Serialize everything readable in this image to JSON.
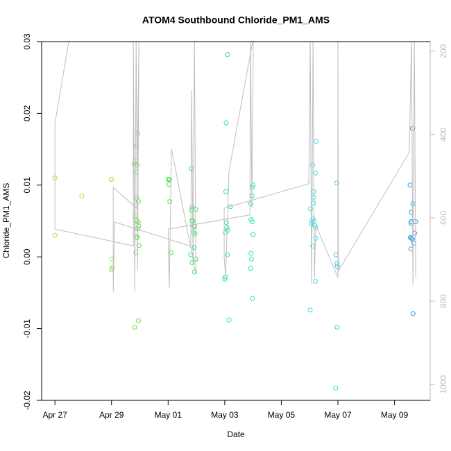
{
  "chart_data": {
    "type": "scatter",
    "title": "ATOM4 Southbound Chloride_PM1_AMS",
    "x_label": "Date",
    "y_label": "Chloride_PM1_AMS",
    "xlim": [
      -0.47,
      13.26
    ],
    "xticks": [
      {
        "value": 0,
        "label": "Apr 27"
      },
      {
        "value": 2,
        "label": "Apr 29"
      },
      {
        "value": 4,
        "label": "May 01"
      },
      {
        "value": 6,
        "label": "May 03"
      },
      {
        "value": 8,
        "label": "May 05"
      },
      {
        "value": 10,
        "label": "May 07"
      },
      {
        "value": 12,
        "label": "May 09"
      }
    ],
    "ylim": [
      -0.02,
      0.03
    ],
    "yticks": [
      -0.02,
      -0.01,
      {
        "value": 0,
        "label": "0.00"
      },
      0.01,
      0.02,
      0.03
    ],
    "y2lim": [
      1038,
      177
    ],
    "y2ticks": [
      200,
      400,
      600,
      800,
      1000
    ],
    "series": [
      {
        "color": "#a6e83a",
        "x": [
          0,
          0,
          0.95
        ],
        "values": [
          0.011,
          0.003,
          0.0085
        ]
      },
      {
        "color": "#7ee83a",
        "x": [
          2,
          2.02,
          2.03,
          2.0
        ],
        "values": [
          0.0108,
          -0.0003,
          -0.0015,
          -0.0018
        ]
      },
      {
        "color": "#5ee83a",
        "x": [
          2.8,
          2.85,
          2.9,
          2.92,
          2.88,
          2.87,
          2.89,
          2.95,
          2.84,
          2.9,
          2.94,
          2.96,
          2.93,
          2.88,
          2.91,
          2.97,
          2.86,
          2.82,
          2.95
        ],
        "values": [
          0.013,
          0.0133,
          0.0128,
          0.0172,
          0.0155,
          0.0118,
          0.0082,
          0.0077,
          0.0057,
          0.005,
          0.0048,
          0.0043,
          0.0039,
          0.0028,
          0.0027,
          0.0016,
          0.0006,
          -0.0098,
          -0.0089
        ]
      },
      {
        "color": "#3ee846",
        "x": [
          4.0,
          4.05,
          4.03,
          4.06,
          4.1
        ],
        "values": [
          0.0108,
          0.0108,
          0.0101,
          0.0077,
          0.0006
        ]
      },
      {
        "color": "#2ee866",
        "x": [
          4.82,
          4.85,
          4.83,
          4.84,
          4.87,
          4.9,
          4.93,
          4.88,
          4.95,
          4.92,
          4.8,
          4.85,
          4.98,
          4.93,
          4.98
        ],
        "values": [
          0.0123,
          0.0069,
          0.0065,
          0.0051,
          0.005,
          0.0043,
          0.0042,
          0.0034,
          0.0032,
          0.0013,
          0.0003,
          -0.0008,
          -0.0003,
          -0.0021,
          0.0066
        ]
      },
      {
        "color": "#26e88c",
        "x": [
          6.1,
          6.05,
          6.04,
          6.2,
          6.06,
          6.08,
          6.1,
          6.03,
          6.09,
          6.02,
          6.0,
          6.15
        ],
        "values": [
          0.0282,
          0.0187,
          0.0091,
          0.007,
          0.0048,
          0.0041,
          0.0037,
          0.0034,
          0.0003,
          -0.0028,
          -0.0031,
          -0.0088
        ]
      },
      {
        "color": "#26e8b0",
        "x": [
          7.0,
          6.98,
          6.97,
          6.92,
          6.93,
          6.97,
          7.0,
          6.93,
          6.94,
          6.92,
          6.98
        ],
        "values": [
          0.01,
          0.0097,
          0.0085,
          0.0074,
          0.0052,
          0.0049,
          0.0031,
          0.0005,
          -0.0003,
          -0.0016,
          -0.0058
        ]
      },
      {
        "color": "#33e0e8",
        "x": [
          9.23,
          9.1,
          9.2,
          9.14,
          9.15,
          9.14,
          9.03,
          9.12,
          9.08,
          9.16,
          9.07,
          9.17,
          9.21,
          9.22,
          9.11,
          9.2,
          9.02
        ],
        "values": [
          0.0161,
          0.0128,
          0.0117,
          0.0091,
          0.0083,
          0.0075,
          0.0067,
          0.0053,
          0.0051,
          0.0049,
          0.0046,
          0.0044,
          0.0041,
          0.0026,
          0.0015,
          -0.0034,
          -0.0074
        ]
      },
      {
        "color": "#33cce8",
        "x": [
          9.96,
          9.93,
          9.97,
          9.98,
          9.97,
          9.92
        ],
        "values": [
          0.0103,
          0.0003,
          -0.0009,
          -0.0013,
          -0.0098,
          -0.0183
        ]
      },
      {
        "color": "#2a9ce8",
        "x": [
          12.63,
          12.55,
          12.65,
          12.6,
          12.74,
          12.58,
          12.56,
          12.6,
          12.63,
          12.68,
          12.58,
          12.71,
          12.59,
          12.65
        ],
        "values": [
          0.0179,
          0.01,
          0.0074,
          0.0062,
          0.0049,
          0.0047,
          0.0027,
          0.0026,
          0.0025,
          0.0019,
          0.0011,
          0.0033,
          0.0049,
          -0.0079
        ]
      },
      {
        "color": "#bebebe",
        "axis": "y2",
        "x": [
          0.51,
          0,
          0,
          2.77,
          2.77,
          2.82,
          2.87,
          2.92,
          2.97,
          2.89,
          2.06,
          2.06,
          2.11,
          4.8,
          4.83,
          4.88,
          4.93,
          4.98,
          4.12,
          4.04,
          4.0,
          6.89,
          6.91,
          6.96,
          7.01,
          6.15,
          6.03,
          5.98,
          5.98,
          8.97,
          9.02,
          9.07,
          9.12,
          9.17,
          9.22,
          10.0,
          10.0,
          10.02,
          12.52,
          12.6,
          12.65,
          12.7,
          12.75,
          12.72
        ],
        "values": [
          168,
          373,
          627,
          667,
          168,
          777,
          168,
          727,
          168,
          577,
          527,
          777,
          610,
          668,
          293,
          710,
          168,
          735,
          435,
          768,
          627,
          593,
          168,
          577,
          168,
          488,
          743,
          693,
          577,
          518,
          168,
          760,
          168,
          743,
          618,
          743,
          168,
          727,
          443,
          168,
          760,
          168,
          743,
          460
        ]
      }
    ]
  }
}
